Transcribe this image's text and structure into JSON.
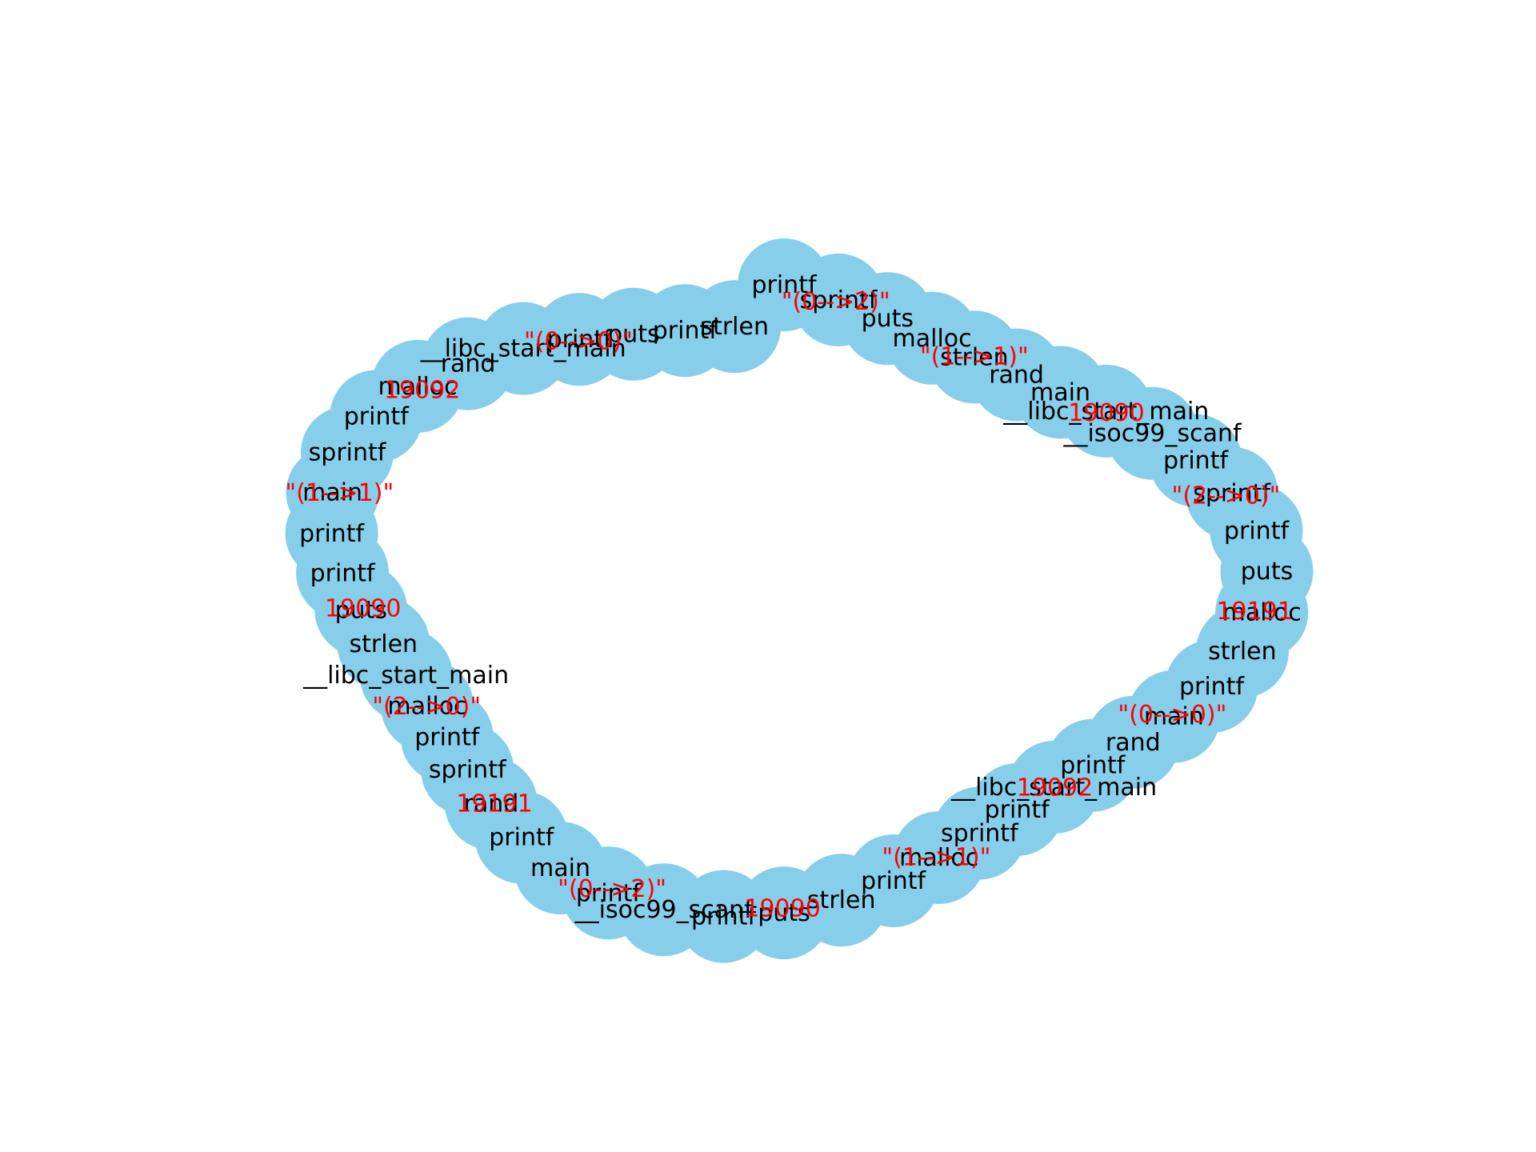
{
  "colors": {
    "node_fill": "#87ceeb",
    "node_label": "#000000",
    "edge_label": "#ff0000",
    "background": "#ffffff"
  },
  "diagram": {
    "node_labels": [
      "printf",
      "sprintf",
      "puts",
      "malloc",
      "strlen",
      "rand",
      "main",
      "__libc_start_main",
      "__isoc99_scanf",
      "printf",
      "sprintf",
      "printf",
      "puts",
      "malloc",
      "strlen",
      "printf",
      "main",
      "rand",
      "printf",
      "__libc_start_main",
      "printf",
      "sprintf",
      "malloc",
      "printf",
      "strlen",
      "puts",
      "printf",
      "__isoc99_scanf",
      "printf",
      "main",
      "printf",
      "rand",
      "sprintf",
      "printf",
      "malloc",
      "__libc_start_main",
      "strlen",
      "puts",
      "printf",
      "printf",
      "main",
      "sprintf",
      "printf",
      "malloc",
      "rand",
      "__libc_start_main",
      "printf",
      "puts",
      "printf",
      "strlen"
    ],
    "edge_labels": [
      "\"(0-->2)\"",
      "\"(1-->1)\"",
      "19090",
      "\"(2-->0)\"",
      "19191",
      "\"(0-->0)\"",
      "19092",
      "\"(1-->1)\"",
      "19090",
      "\"(0-->2)\"",
      "19191",
      "\"(2-->0)\"",
      "19090",
      "\"(1-->1)\"",
      "19092",
      "\"(0-->0)\""
    ]
  }
}
